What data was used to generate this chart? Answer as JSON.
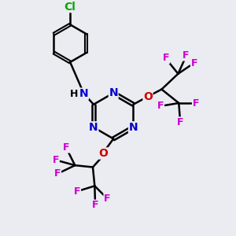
{
  "background_color": "#ebebf2",
  "bond_color": "black",
  "triazine_N_color": "#0000cc",
  "O_color": "#cc0000",
  "F_color": "#cc00cc",
  "Cl_color": "#00aa00",
  "NH_color": "#0000cc",
  "figsize": [
    3.0,
    3.0
  ],
  "dpi": 100,
  "xlim": [
    0,
    10
  ],
  "ylim": [
    0,
    10
  ]
}
